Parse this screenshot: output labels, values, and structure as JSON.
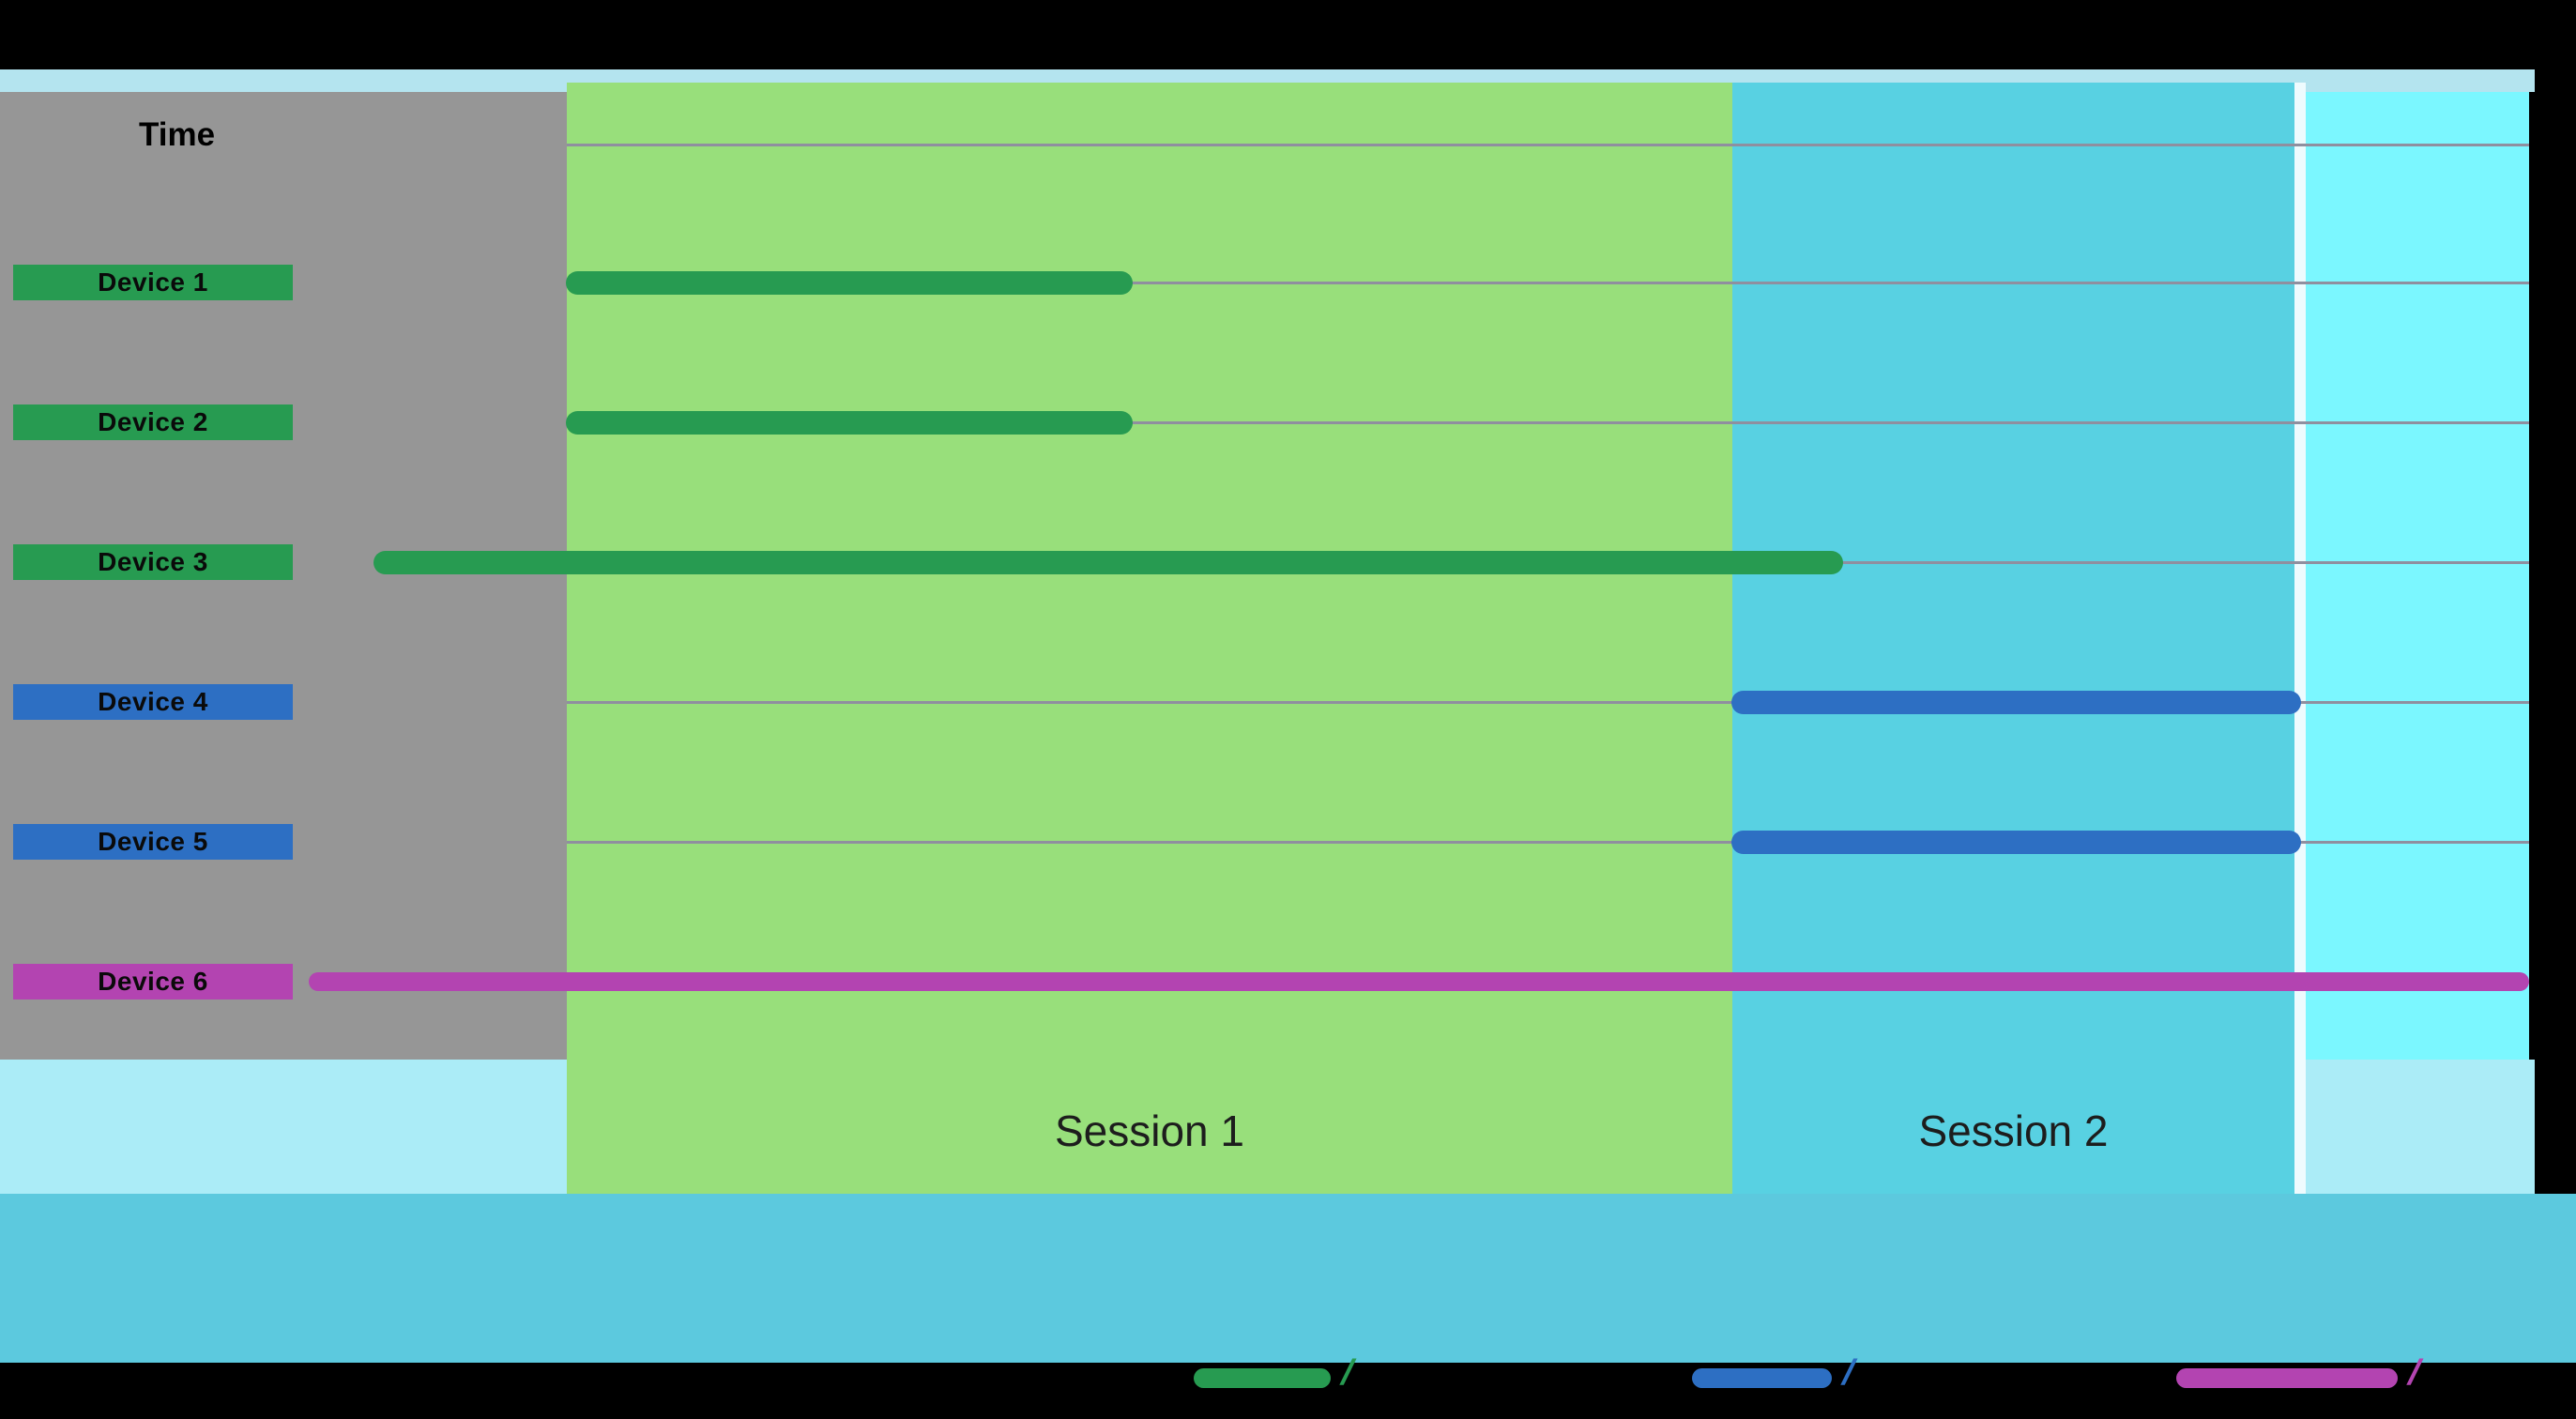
{
  "chart_data": {
    "type": "bar",
    "subtype": "horizontal-gantt-timeline",
    "title": "",
    "xlabel": "Time",
    "ylabel": "",
    "x_axis": {
      "label": "Time",
      "numeric_ticks_visible": false,
      "range_pct": [
        0,
        100
      ]
    },
    "regions": [
      {
        "name": "Session 1",
        "fill": "#98df7b",
        "start_pct": 12.1,
        "end_pct": 64.3
      },
      {
        "name": "Session 2",
        "fill": "#58d1e2",
        "start_pct": 64.3,
        "end_pct": 89.5
      },
      {
        "name": "",
        "fill": "#7bf7ff",
        "start_pct": 90.0,
        "end_pct": 100.0
      }
    ],
    "rows": [
      {
        "label": "Device 1",
        "color": "#279b51",
        "start_pct": 12.1,
        "end_pct": 37.5,
        "bar_weight": 25
      },
      {
        "label": "Device 2",
        "color": "#279b51",
        "start_pct": 12.1,
        "end_pct": 37.5,
        "bar_weight": 25
      },
      {
        "label": "Device 3",
        "color": "#279b51",
        "start_pct": 3.5,
        "end_pct": 69.3,
        "bar_weight": 25
      },
      {
        "label": "Device 4",
        "color": "#2d6fc3",
        "start_pct": 64.3,
        "end_pct": 89.8,
        "bar_weight": 25
      },
      {
        "label": "Device 5",
        "color": "#2d6fc3",
        "start_pct": 64.3,
        "end_pct": 89.8,
        "bar_weight": 25
      },
      {
        "label": "Device 6",
        "color": "#b344b1",
        "start_pct": 0.6,
        "end_pct": 100.0,
        "bar_weight": 20
      }
    ],
    "legend": [
      {
        "swatch_color": "#279b51",
        "label": ""
      },
      {
        "swatch_color": "#2d6fc3",
        "label": ""
      },
      {
        "swatch_color": "#b344b1",
        "label": ""
      }
    ],
    "colors": {
      "pre_session_background": "#969696",
      "gridline": "#8f8f9f",
      "top_strip": "#b4e4ef",
      "lower_band": "#abecf7",
      "footer_band": "#5cc9de",
      "region_divider": "#eefbfe",
      "letterbox": "#000000"
    },
    "legend_position": "bottom",
    "grid": true
  }
}
